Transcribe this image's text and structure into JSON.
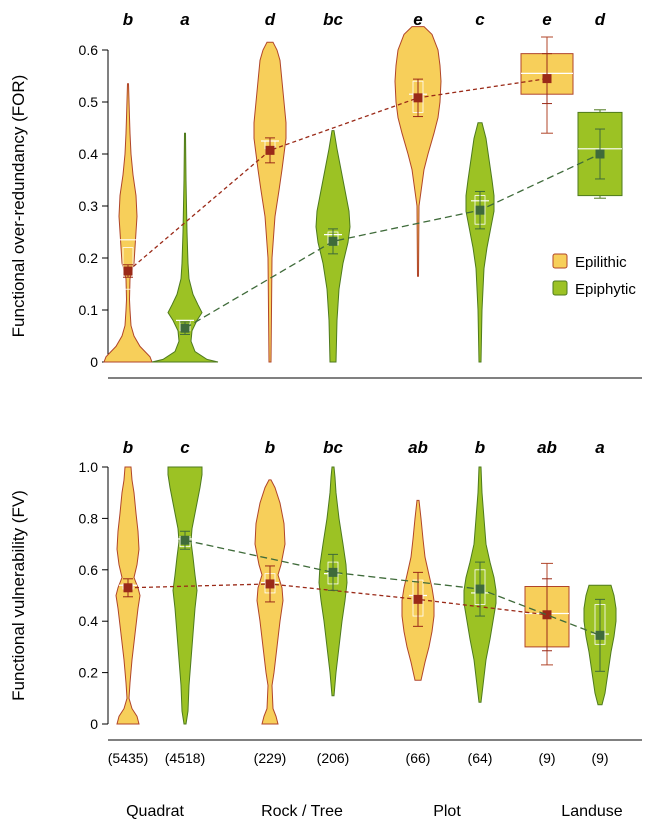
{
  "groups": [
    "Quadrat",
    "Rock / Tree",
    "Plot",
    "Landuse"
  ],
  "counts": [
    [
      "(5435)",
      "(4518)"
    ],
    [
      "(229)",
      "(206)"
    ],
    [
      "(66)",
      "(64)"
    ],
    [
      "(9)",
      "(9)"
    ]
  ],
  "legend": [
    {
      "name": "Epilithic",
      "fill": "#F7CF5A",
      "edge": "#B0452A"
    },
    {
      "name": "Epiphytic",
      "fill": "#9CC224",
      "edge": "#4E7A1E"
    }
  ],
  "colors": {
    "epilithic_fill": "#F7CF5A",
    "epilithic_edge": "#B0452A",
    "epilithic_mean": "#9A2A18",
    "epiphytic_fill": "#9CC224",
    "epiphytic_edge": "#4E7A1E",
    "epiphytic_mean": "#3F6B3A"
  },
  "chart_data": [
    {
      "type": "violin",
      "ylabel": "Functional over-redundancy (FOR)",
      "ylim": [
        0,
        0.6
      ],
      "yticks": [
        "0",
        "0.1",
        "0.2",
        "0.3",
        "0.4",
        "0.5",
        "0.6"
      ],
      "categories": [
        "Quadrat",
        "Rock / Tree",
        "Plot",
        "Landuse"
      ],
      "series": [
        {
          "name": "Epilithic",
          "means": [
            0.175,
            0.407,
            0.508,
            0.545
          ],
          "letters": [
            "b",
            "d",
            "e",
            "e"
          ]
        },
        {
          "name": "Epiphytic",
          "means": [
            0.065,
            0.232,
            0.292,
            0.4
          ],
          "letters": [
            "a",
            "bc",
            "c",
            "d"
          ]
        }
      ]
    },
    {
      "type": "violin",
      "ylabel": "Functional vulnerability (FV)",
      "ylim": [
        0,
        1.0
      ],
      "yticks": [
        "0",
        "0.2",
        "0.4",
        "0.6",
        "0.8",
        "1.0"
      ],
      "categories": [
        "Quadrat",
        "Rock / Tree",
        "Plot",
        "Landuse"
      ],
      "series": [
        {
          "name": "Epilithic",
          "means": [
            0.53,
            0.545,
            0.485,
            0.425
          ],
          "letters": [
            "b",
            "b",
            "ab",
            "ab"
          ]
        },
        {
          "name": "Epiphytic",
          "means": [
            0.715,
            0.59,
            0.525,
            0.345
          ],
          "letters": [
            "c",
            "bc",
            "b",
            "a"
          ]
        }
      ]
    }
  ]
}
